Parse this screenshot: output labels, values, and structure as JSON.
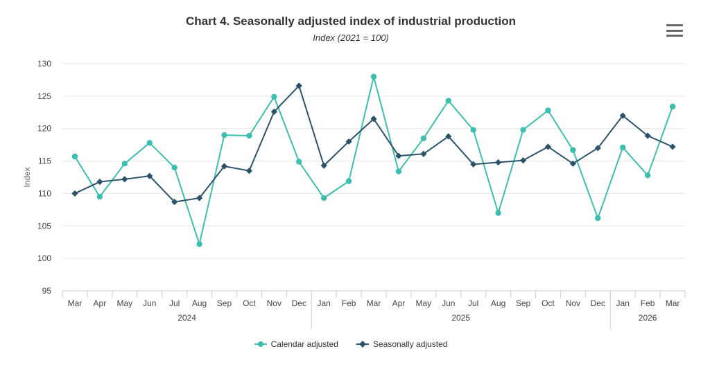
{
  "title": "Chart 4. Seasonally adjusted index of industrial production",
  "subtitle": "Index (2021 = 100)",
  "menu_icon": "hamburger-menu-icon",
  "colors": {
    "calendar": "#3dbeae",
    "seasonal": "#2b5269",
    "grid": "#e6e6e6",
    "axis": "#cccccc"
  },
  "chart_data": {
    "type": "line",
    "title": "Chart 4. Seasonally adjusted index of industrial production",
    "subtitle": "Index (2021 = 100)",
    "xlabel": "",
    "ylabel": "Index",
    "ylim": [
      95,
      130
    ],
    "yticks": [
      95,
      100,
      105,
      110,
      115,
      120,
      125,
      130
    ],
    "grid": true,
    "legend_position": "bottom-center",
    "categories": [
      "Mar",
      "Apr",
      "May",
      "Jun",
      "Jul",
      "Aug",
      "Sep",
      "Oct",
      "Nov",
      "Dec",
      "Jan",
      "Feb",
      "Mar",
      "Apr",
      "May",
      "Jun",
      "Jul",
      "Aug",
      "Sep",
      "Oct",
      "Nov",
      "Dec",
      "Jan",
      "Feb",
      "Mar"
    ],
    "year_groups": [
      {
        "label": "2024",
        "count": 10
      },
      {
        "label": "2025",
        "count": 12
      },
      {
        "label": "2026",
        "count": 3
      }
    ],
    "series": [
      {
        "name": "Calendar adjusted",
        "marker": "circle",
        "values": [
          115.7,
          109.5,
          114.6,
          117.8,
          114.0,
          102.2,
          119.0,
          118.9,
          124.9,
          114.9,
          109.3,
          111.9,
          128.0,
          113.4,
          118.5,
          124.3,
          119.8,
          107.0,
          119.8,
          122.8,
          116.7,
          106.2,
          117.1,
          112.8,
          123.4
        ]
      },
      {
        "name": "Seasonally adjusted",
        "marker": "diamond",
        "values": [
          110.0,
          111.8,
          112.2,
          112.7,
          108.7,
          109.3,
          114.2,
          113.5,
          122.6,
          126.6,
          114.3,
          118.0,
          121.5,
          115.8,
          116.1,
          118.8,
          114.5,
          114.8,
          115.1,
          117.2,
          114.6,
          117.0,
          122.0,
          118.9,
          117.2
        ]
      }
    ]
  }
}
